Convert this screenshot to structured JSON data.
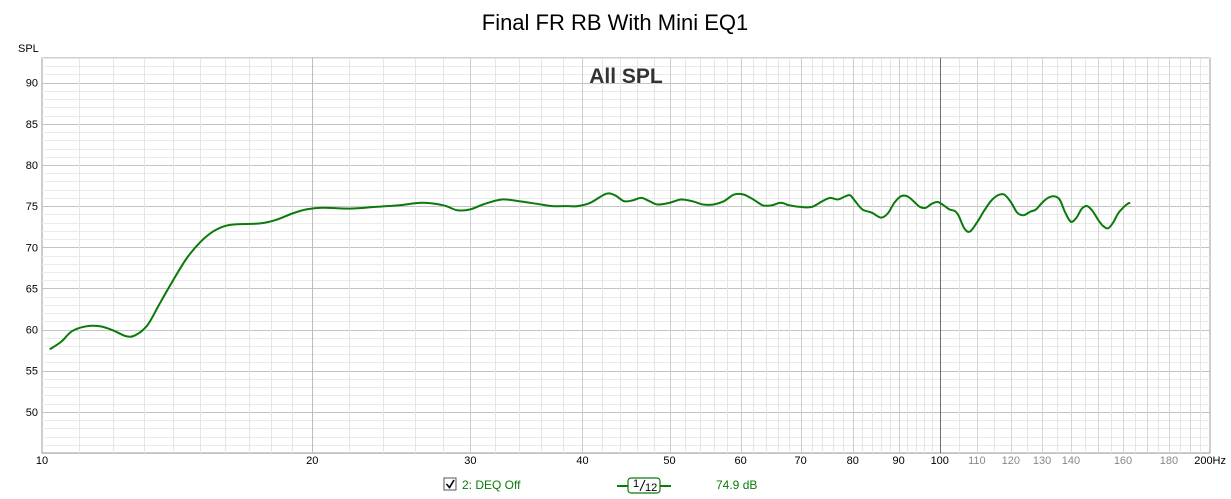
{
  "chart_data": {
    "type": "line",
    "title": "Final FR RB With Mini EQ1",
    "overlay_label": "All SPL",
    "ylabel": "SPL",
    "x_unit": "Hz",
    "x_scale": "log",
    "xlim": [
      10,
      200
    ],
    "ylim": [
      45,
      93
    ],
    "grid": true,
    "x_ticks_major": [
      {
        "value": 10,
        "label": "10"
      },
      {
        "value": 20,
        "label": "20"
      },
      {
        "value": 30,
        "label": "30"
      },
      {
        "value": 40,
        "label": "40"
      },
      {
        "value": 50,
        "label": "50"
      },
      {
        "value": 60,
        "label": "60"
      },
      {
        "value": 70,
        "label": "70"
      },
      {
        "value": 80,
        "label": "80"
      },
      {
        "value": 90,
        "label": "90"
      },
      {
        "value": 100,
        "label": "100"
      }
    ],
    "x_ticks_minor": [
      {
        "value": 110,
        "label": "110"
      },
      {
        "value": 120,
        "label": "120"
      },
      {
        "value": 130,
        "label": "130"
      },
      {
        "value": 140,
        "label": "140"
      },
      {
        "value": 160,
        "label": "160"
      },
      {
        "value": 180,
        "label": "180"
      },
      {
        "value": 200,
        "label": "200Hz"
      }
    ],
    "y_ticks": [
      50,
      55,
      60,
      65,
      70,
      75,
      80,
      85,
      90
    ],
    "series": [
      {
        "name": "2: DEQ Off",
        "color": "#0a7a0a",
        "points": [
          [
            10.2,
            57.6
          ],
          [
            10.5,
            58.5
          ],
          [
            10.8,
            59.8
          ],
          [
            11.2,
            60.4
          ],
          [
            11.6,
            60.4
          ],
          [
            12.0,
            59.9
          ],
          [
            12.4,
            59.2
          ],
          [
            12.7,
            59.3
          ],
          [
            13.1,
            60.5
          ],
          [
            13.5,
            63.0
          ],
          [
            14.0,
            66.0
          ],
          [
            14.5,
            68.7
          ],
          [
            15.0,
            70.6
          ],
          [
            15.5,
            71.9
          ],
          [
            16.0,
            72.6
          ],
          [
            16.5,
            72.8
          ],
          [
            17.5,
            72.9
          ],
          [
            18.2,
            73.3
          ],
          [
            19.0,
            74.1
          ],
          [
            19.7,
            74.6
          ],
          [
            20.5,
            74.8
          ],
          [
            22.0,
            74.7
          ],
          [
            23.5,
            74.9
          ],
          [
            25.0,
            75.1
          ],
          [
            26.5,
            75.4
          ],
          [
            28.0,
            75.1
          ],
          [
            29.0,
            74.5
          ],
          [
            30.0,
            74.6
          ],
          [
            31.0,
            75.2
          ],
          [
            32.5,
            75.8
          ],
          [
            34.0,
            75.6
          ],
          [
            35.5,
            75.3
          ],
          [
            37.0,
            75.0
          ],
          [
            38.5,
            75.0
          ],
          [
            39.5,
            75.0
          ],
          [
            40.8,
            75.4
          ],
          [
            42.5,
            76.5
          ],
          [
            43.5,
            76.3
          ],
          [
            44.5,
            75.6
          ],
          [
            45.5,
            75.7
          ],
          [
            46.5,
            76.0
          ],
          [
            47.5,
            75.6
          ],
          [
            48.5,
            75.2
          ],
          [
            50.0,
            75.4
          ],
          [
            51.5,
            75.8
          ],
          [
            53.0,
            75.6
          ],
          [
            54.5,
            75.2
          ],
          [
            56.0,
            75.2
          ],
          [
            57.5,
            75.6
          ],
          [
            59.0,
            76.4
          ],
          [
            60.5,
            76.4
          ],
          [
            62.0,
            75.8
          ],
          [
            63.5,
            75.1
          ],
          [
            65.0,
            75.1
          ],
          [
            66.5,
            75.4
          ],
          [
            68.0,
            75.1
          ],
          [
            70.0,
            74.9
          ],
          [
            72.0,
            74.9
          ],
          [
            74.0,
            75.6
          ],
          [
            75.5,
            76.0
          ],
          [
            77.0,
            75.8
          ],
          [
            78.5,
            76.2
          ],
          [
            79.5,
            76.3
          ],
          [
            80.5,
            75.6
          ],
          [
            82.0,
            74.6
          ],
          [
            84.0,
            74.2
          ],
          [
            86.0,
            73.6
          ],
          [
            87.5,
            74.1
          ],
          [
            89.0,
            75.4
          ],
          [
            90.5,
            76.2
          ],
          [
            92.0,
            76.2
          ],
          [
            93.5,
            75.6
          ],
          [
            95.0,
            74.9
          ],
          [
            96.5,
            74.8
          ],
          [
            98.0,
            75.3
          ],
          [
            99.5,
            75.5
          ],
          [
            101.0,
            75.1
          ],
          [
            102.5,
            74.6
          ],
          [
            104.0,
            74.4
          ],
          [
            105.0,
            73.8
          ],
          [
            106.5,
            72.3
          ],
          [
            108.0,
            71.9
          ],
          [
            110.0,
            73.0
          ],
          [
            112.0,
            74.4
          ],
          [
            114.0,
            75.6
          ],
          [
            116.0,
            76.3
          ],
          [
            118.0,
            76.4
          ],
          [
            120.0,
            75.5
          ],
          [
            122.0,
            74.2
          ],
          [
            124.0,
            73.9
          ],
          [
            126.0,
            74.3
          ],
          [
            128.0,
            74.6
          ],
          [
            130.0,
            75.4
          ],
          [
            132.0,
            76.0
          ],
          [
            134.0,
            76.2
          ],
          [
            136.0,
            75.8
          ],
          [
            138.0,
            74.2
          ],
          [
            140.0,
            73.1
          ],
          [
            142.0,
            73.6
          ],
          [
            144.0,
            74.7
          ],
          [
            146.0,
            75.0
          ],
          [
            148.0,
            74.4
          ],
          [
            150.0,
            73.4
          ],
          [
            152.0,
            72.6
          ],
          [
            154.0,
            72.3
          ],
          [
            156.0,
            73.0
          ],
          [
            158.0,
            74.1
          ],
          [
            160.0,
            74.8
          ],
          [
            162.0,
            75.3
          ],
          [
            163.0,
            75.4
          ]
        ]
      }
    ],
    "legend": {
      "checkbox_checked": true,
      "series_label": "2: DEQ Off",
      "smoothing_numerator": "1",
      "smoothing_denominator": "12",
      "value_readout": "74.9 dB"
    }
  }
}
